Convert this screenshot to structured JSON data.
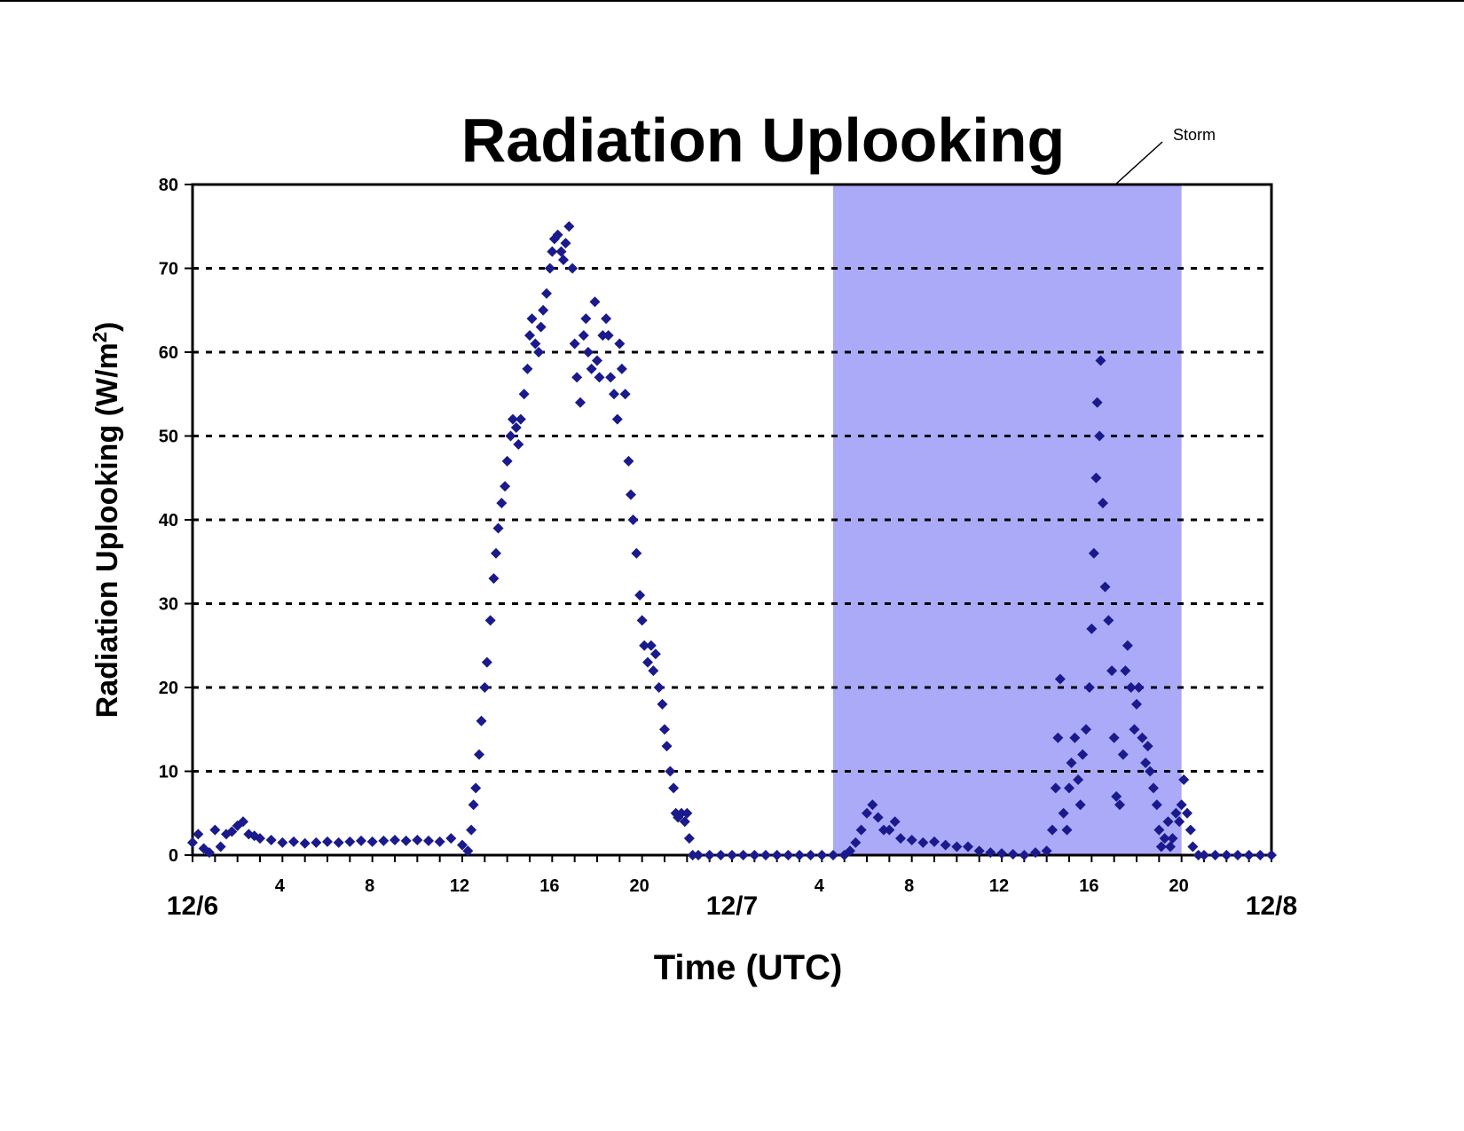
{
  "chart_data": {
    "type": "scatter",
    "title": "Radiation Uplooking",
    "xlabel": "Time (UTC)",
    "ylabel": "Radiation Uplooking",
    "ylabel_unit": "(W/m",
    "ylabel_sup": "2",
    "ylabel_close": ")",
    "x_unit": "hours from 12/6 00 UTC",
    "xlim": [
      0,
      48
    ],
    "ylim": [
      0,
      80
    ],
    "y_ticks": [
      0,
      10,
      20,
      30,
      40,
      50,
      60,
      70,
      80
    ],
    "x_hour_ticks": [
      {
        "x": 4,
        "label": "4"
      },
      {
        "x": 8,
        "label": "8"
      },
      {
        "x": 12,
        "label": "12"
      },
      {
        "x": 16,
        "label": "16"
      },
      {
        "x": 20,
        "label": "20"
      },
      {
        "x": 28,
        "label": "4"
      },
      {
        "x": 32,
        "label": "8"
      },
      {
        "x": 36,
        "label": "12"
      },
      {
        "x": 40,
        "label": "16"
      },
      {
        "x": 44,
        "label": "20"
      }
    ],
    "x_date_labels": [
      {
        "x": 0,
        "label": "12/6"
      },
      {
        "x": 24,
        "label": "12/7"
      },
      {
        "x": 48,
        "label": "12/8"
      }
    ],
    "grid": "horizontal dashed",
    "marker": "diamond",
    "marker_color": "#1a1a8c",
    "shaded_region": {
      "x0": 28.5,
      "x1": 44,
      "color": "#aaaaf8",
      "label": "Storm"
    },
    "series": [
      {
        "points": [
          [
            0.0,
            1.5
          ],
          [
            0.25,
            2.5
          ],
          [
            0.5,
            0.8
          ],
          [
            0.75,
            0.3
          ],
          [
            1.0,
            3.0
          ],
          [
            1.25,
            1.0
          ],
          [
            1.5,
            2.5
          ],
          [
            1.75,
            2.8
          ],
          [
            2.0,
            3.5
          ],
          [
            2.25,
            4.0
          ],
          [
            2.5,
            2.5
          ],
          [
            2.75,
            2.3
          ],
          [
            3.0,
            2.0
          ],
          [
            3.5,
            1.8
          ],
          [
            4.0,
            1.5
          ],
          [
            4.5,
            1.6
          ],
          [
            5.0,
            1.4
          ],
          [
            5.5,
            1.5
          ],
          [
            6.0,
            1.6
          ],
          [
            6.5,
            1.5
          ],
          [
            7.0,
            1.6
          ],
          [
            7.5,
            1.7
          ],
          [
            8.0,
            1.6
          ],
          [
            8.5,
            1.7
          ],
          [
            9.0,
            1.8
          ],
          [
            9.5,
            1.7
          ],
          [
            10.0,
            1.8
          ],
          [
            10.5,
            1.7
          ],
          [
            11.0,
            1.6
          ],
          [
            11.5,
            2.0
          ],
          [
            12.0,
            1.2
          ],
          [
            12.25,
            0.5
          ],
          [
            12.4,
            3.0
          ],
          [
            12.5,
            6.0
          ],
          [
            12.6,
            8.0
          ],
          [
            12.75,
            12.0
          ],
          [
            12.85,
            16.0
          ],
          [
            13.0,
            20.0
          ],
          [
            13.1,
            23.0
          ],
          [
            13.25,
            28.0
          ],
          [
            13.4,
            33.0
          ],
          [
            13.5,
            36.0
          ],
          [
            13.6,
            39.0
          ],
          [
            13.75,
            42.0
          ],
          [
            13.9,
            44.0
          ],
          [
            14.0,
            47.0
          ],
          [
            14.15,
            50.0
          ],
          [
            14.25,
            52.0
          ],
          [
            14.4,
            51.0
          ],
          [
            14.5,
            49.0
          ],
          [
            14.6,
            52.0
          ],
          [
            14.75,
            55.0
          ],
          [
            14.9,
            58.0
          ],
          [
            15.0,
            62.0
          ],
          [
            15.1,
            64.0
          ],
          [
            15.25,
            61.0
          ],
          [
            15.4,
            60.0
          ],
          [
            15.5,
            63.0
          ],
          [
            15.6,
            65.0
          ],
          [
            15.75,
            67.0
          ],
          [
            15.9,
            70.0
          ],
          [
            16.0,
            72.0
          ],
          [
            16.1,
            73.5
          ],
          [
            16.25,
            74.0
          ],
          [
            16.4,
            72.0
          ],
          [
            16.5,
            71.0
          ],
          [
            16.6,
            73.0
          ],
          [
            16.75,
            75.0
          ],
          [
            16.9,
            70.0
          ],
          [
            17.0,
            61.0
          ],
          [
            17.1,
            57.0
          ],
          [
            17.25,
            54.0
          ],
          [
            17.4,
            62.0
          ],
          [
            17.5,
            64.0
          ],
          [
            17.6,
            60.0
          ],
          [
            17.75,
            58.0
          ],
          [
            17.9,
            66.0
          ],
          [
            18.0,
            59.0
          ],
          [
            18.1,
            57.0
          ],
          [
            18.25,
            62.0
          ],
          [
            18.4,
            64.0
          ],
          [
            18.5,
            62.0
          ],
          [
            18.6,
            57.0
          ],
          [
            18.75,
            55.0
          ],
          [
            18.9,
            52.0
          ],
          [
            19.0,
            61.0
          ],
          [
            19.1,
            58.0
          ],
          [
            19.25,
            55.0
          ],
          [
            19.4,
            47.0
          ],
          [
            19.5,
            43.0
          ],
          [
            19.6,
            40.0
          ],
          [
            19.75,
            36.0
          ],
          [
            19.9,
            31.0
          ],
          [
            20.0,
            28.0
          ],
          [
            20.1,
            25.0
          ],
          [
            20.25,
            23.0
          ],
          [
            20.4,
            25.0
          ],
          [
            20.5,
            22.0
          ],
          [
            20.6,
            24.0
          ],
          [
            20.75,
            20.0
          ],
          [
            20.9,
            18.0
          ],
          [
            21.0,
            15.0
          ],
          [
            21.1,
            13.0
          ],
          [
            21.25,
            10.0
          ],
          [
            21.4,
            8.0
          ],
          [
            21.5,
            5.0
          ],
          [
            21.6,
            4.5
          ],
          [
            21.75,
            5.0
          ],
          [
            21.9,
            4.0
          ],
          [
            22.0,
            5.0
          ],
          [
            22.1,
            2.0
          ],
          [
            22.25,
            0.0
          ],
          [
            22.5,
            0.0
          ],
          [
            23.0,
            0.0
          ],
          [
            23.5,
            0.0
          ],
          [
            24.0,
            0.0
          ],
          [
            24.5,
            0.0
          ],
          [
            25.0,
            0.0
          ],
          [
            25.5,
            0.0
          ],
          [
            26.0,
            0.0
          ],
          [
            26.5,
            0.0
          ],
          [
            27.0,
            0.0
          ],
          [
            27.5,
            0.0
          ],
          [
            28.0,
            0.0
          ],
          [
            28.5,
            0.0
          ],
          [
            29.0,
            0.0
          ],
          [
            29.25,
            0.5
          ],
          [
            29.5,
            1.5
          ],
          [
            29.75,
            3.0
          ],
          [
            30.0,
            5.0
          ],
          [
            30.25,
            6.0
          ],
          [
            30.5,
            4.5
          ],
          [
            30.75,
            3.0
          ],
          [
            31.0,
            3.0
          ],
          [
            31.25,
            4.0
          ],
          [
            31.5,
            2.0
          ],
          [
            32.0,
            1.8
          ],
          [
            32.5,
            1.5
          ],
          [
            33.0,
            1.6
          ],
          [
            33.5,
            1.2
          ],
          [
            34.0,
            1.0
          ],
          [
            34.5,
            1.0
          ],
          [
            35.0,
            0.5
          ],
          [
            35.5,
            0.3
          ],
          [
            36.0,
            0.2
          ],
          [
            36.5,
            0.1
          ],
          [
            37.0,
            0.0
          ],
          [
            37.5,
            0.3
          ],
          [
            38.0,
            0.5
          ],
          [
            38.25,
            3.0
          ],
          [
            38.4,
            8.0
          ],
          [
            38.5,
            14.0
          ],
          [
            38.6,
            21.0
          ],
          [
            38.75,
            5.0
          ],
          [
            38.9,
            3.0
          ],
          [
            39.0,
            8.0
          ],
          [
            39.1,
            11.0
          ],
          [
            39.25,
            14.0
          ],
          [
            39.4,
            9.0
          ],
          [
            39.5,
            6.0
          ],
          [
            39.6,
            12.0
          ],
          [
            39.75,
            15.0
          ],
          [
            39.9,
            20.0
          ],
          [
            40.0,
            27.0
          ],
          [
            40.1,
            36.0
          ],
          [
            40.2,
            45.0
          ],
          [
            40.25,
            54.0
          ],
          [
            40.35,
            50.0
          ],
          [
            40.4,
            59.0
          ],
          [
            40.5,
            42.0
          ],
          [
            40.6,
            32.0
          ],
          [
            40.75,
            28.0
          ],
          [
            40.9,
            22.0
          ],
          [
            41.0,
            14.0
          ],
          [
            41.1,
            7.0
          ],
          [
            41.25,
            6.0
          ],
          [
            41.4,
            12.0
          ],
          [
            41.5,
            22.0
          ],
          [
            41.6,
            25.0
          ],
          [
            41.75,
            20.0
          ],
          [
            41.9,
            15.0
          ],
          [
            42.0,
            18.0
          ],
          [
            42.1,
            20.0
          ],
          [
            42.25,
            14.0
          ],
          [
            42.4,
            11.0
          ],
          [
            42.5,
            13.0
          ],
          [
            42.6,
            10.0
          ],
          [
            42.75,
            8.0
          ],
          [
            42.9,
            6.0
          ],
          [
            43.0,
            3.0
          ],
          [
            43.1,
            1.0
          ],
          [
            43.25,
            2.0
          ],
          [
            43.4,
            4.0
          ],
          [
            43.5,
            1.0
          ],
          [
            43.6,
            2.0
          ],
          [
            43.75,
            5.0
          ],
          [
            43.9,
            4.0
          ],
          [
            44.0,
            6.0
          ],
          [
            44.1,
            9.0
          ],
          [
            44.25,
            5.0
          ],
          [
            44.4,
            3.0
          ],
          [
            44.5,
            1.0
          ],
          [
            44.75,
            0.0
          ],
          [
            45.0,
            0.0
          ],
          [
            45.5,
            0.0
          ],
          [
            46.0,
            0.0
          ],
          [
            46.5,
            0.0
          ],
          [
            47.0,
            0.0
          ],
          [
            47.5,
            0.0
          ],
          [
            48.0,
            0.0
          ]
        ]
      }
    ]
  }
}
